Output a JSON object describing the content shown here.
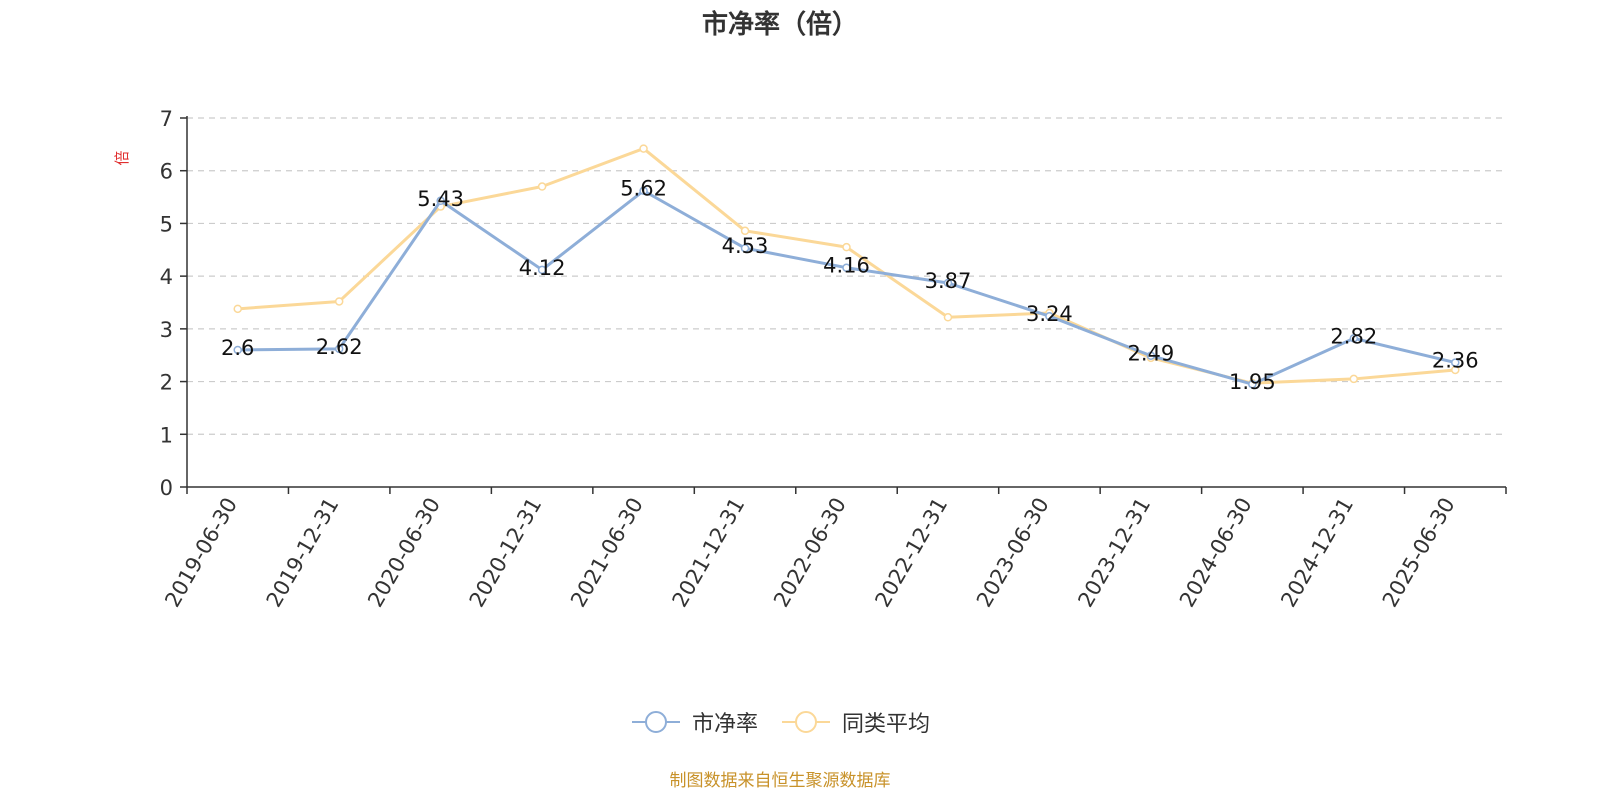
{
  "title": "市净率（倍）",
  "footer": "制图数据来自恒生聚源数据库",
  "chart_data": {
    "type": "line",
    "title": "市净率（倍）",
    "ylabel": "倍",
    "ylim": [
      0,
      7
    ],
    "yticks": [
      0,
      1,
      2,
      3,
      4,
      5,
      6,
      7
    ],
    "grid": true,
    "legend_position": "bottom",
    "categories": [
      "2019-06-30",
      "2019-12-31",
      "2020-06-30",
      "2020-12-31",
      "2021-06-30",
      "2021-12-31",
      "2022-06-30",
      "2022-12-31",
      "2023-06-30",
      "2023-12-31",
      "2024-06-30",
      "2024-12-31",
      "2025-06-30"
    ],
    "series": [
      {
        "name": "市净率",
        "color": "#8eaed8",
        "values": [
          2.6,
          2.62,
          5.43,
          4.12,
          5.62,
          4.53,
          4.16,
          3.87,
          3.24,
          2.49,
          1.95,
          2.82,
          2.36
        ],
        "labels": [
          "2.6",
          "2.62",
          "5.43",
          "4.12",
          "5.62",
          "4.53",
          "4.16",
          "3.87",
          "3.24",
          "2.49",
          "1.95",
          "2.82",
          "2.36"
        ]
      },
      {
        "name": "同类平均",
        "color": "#fbd898",
        "values": [
          3.38,
          3.52,
          5.32,
          5.7,
          6.42,
          4.86,
          4.55,
          3.22,
          3.3,
          2.45,
          1.97,
          2.05,
          2.22
        ]
      }
    ]
  }
}
